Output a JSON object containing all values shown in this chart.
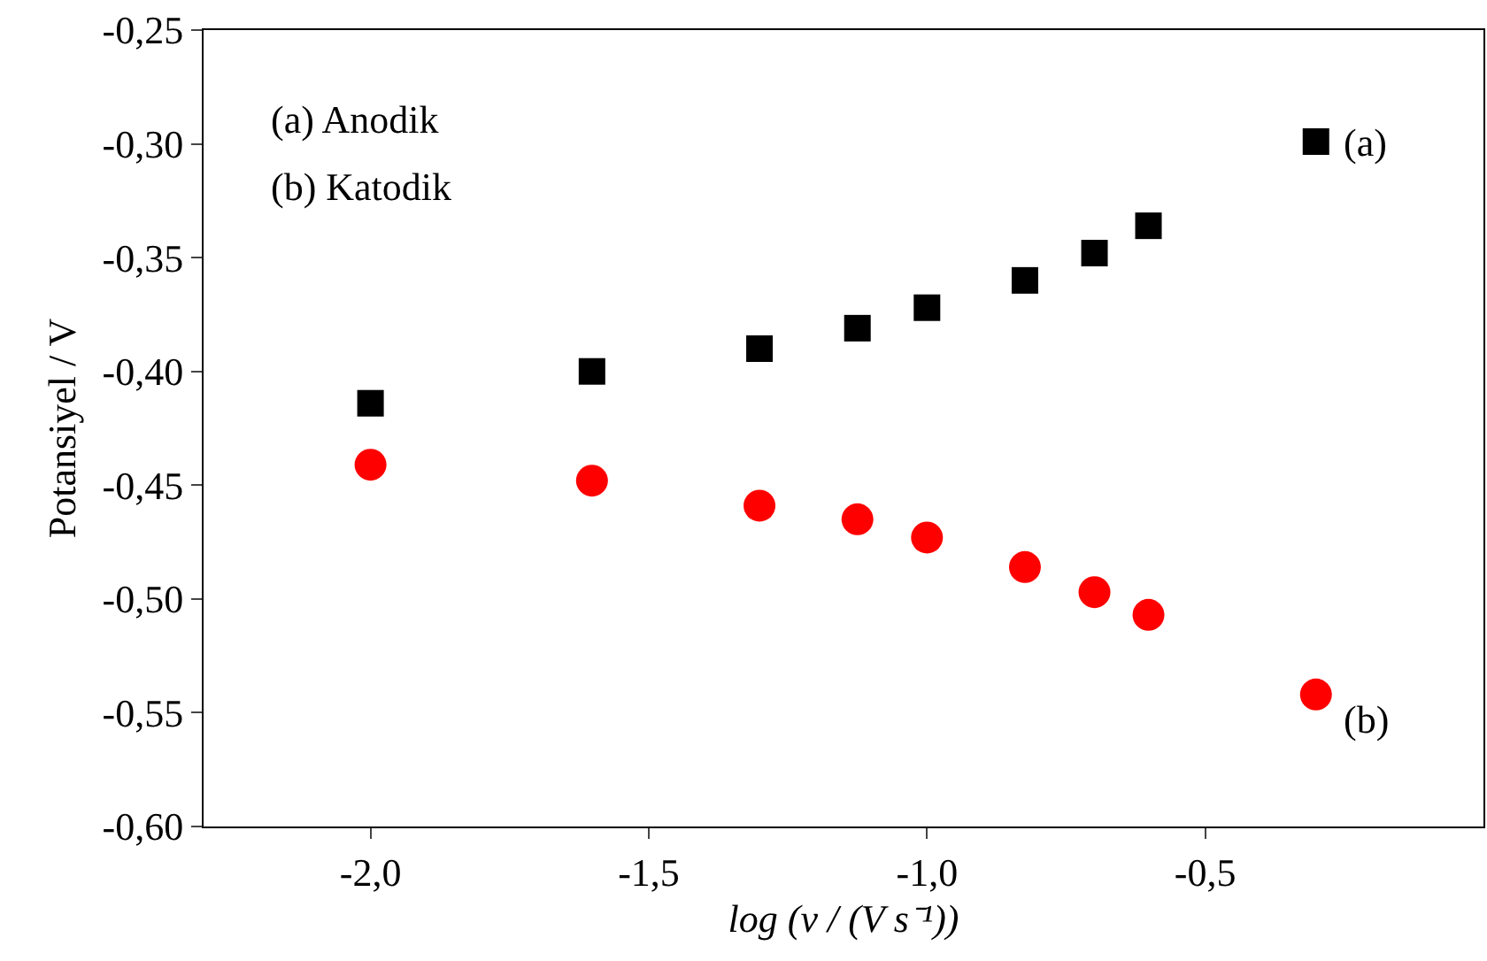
{
  "chart_data": {
    "type": "scatter",
    "xlabel": "log (v / (V s⁻¹))",
    "ylabel": "Potansiyel / V",
    "annotations": [
      "(a) Anodik",
      "(b) Katodik"
    ],
    "xlim": [
      -2.3,
      0
    ],
    "xticks": [
      {
        "value": -2,
        "label": "-2,0"
      },
      {
        "value": -1.5,
        "label": "-1,5"
      },
      {
        "value": -1,
        "label": "-1,0"
      },
      {
        "value": -0.5,
        "label": "-0,5"
      }
    ],
    "ylim": [
      -0.6,
      -0.25
    ],
    "yticks": [
      {
        "value": -0.6,
        "label": "-0,60"
      },
      {
        "value": -0.55,
        "label": "-0,55"
      },
      {
        "value": -0.5,
        "label": "-0,50"
      },
      {
        "value": -0.45,
        "label": "-0,45"
      },
      {
        "value": -0.4,
        "label": "-0,40"
      },
      {
        "value": -0.35,
        "label": "-0,35"
      },
      {
        "value": -0.3,
        "label": "-0,30"
      },
      {
        "value": -0.25,
        "label": "-0,25"
      }
    ],
    "x": [
      -2,
      -1.602,
      -1.301,
      -1.125,
      -1,
      -0.824,
      -0.699,
      -0.602,
      -0.301
    ],
    "grid": false,
    "legend": false,
    "series": [
      {
        "name": "(a)",
        "color": "#000000",
        "marker": "square",
        "values": [
          -0.414,
          -0.4,
          -0.39,
          -0.381,
          -0.372,
          -0.36,
          -0.348,
          -0.336,
          -0.299
        ]
      },
      {
        "name": "(b)",
        "color": "#ff0000",
        "marker": "circle",
        "values": [
          -0.441,
          -0.448,
          -0.459,
          -0.465,
          -0.473,
          -0.486,
          -0.497,
          -0.507,
          -0.542
        ]
      }
    ]
  }
}
